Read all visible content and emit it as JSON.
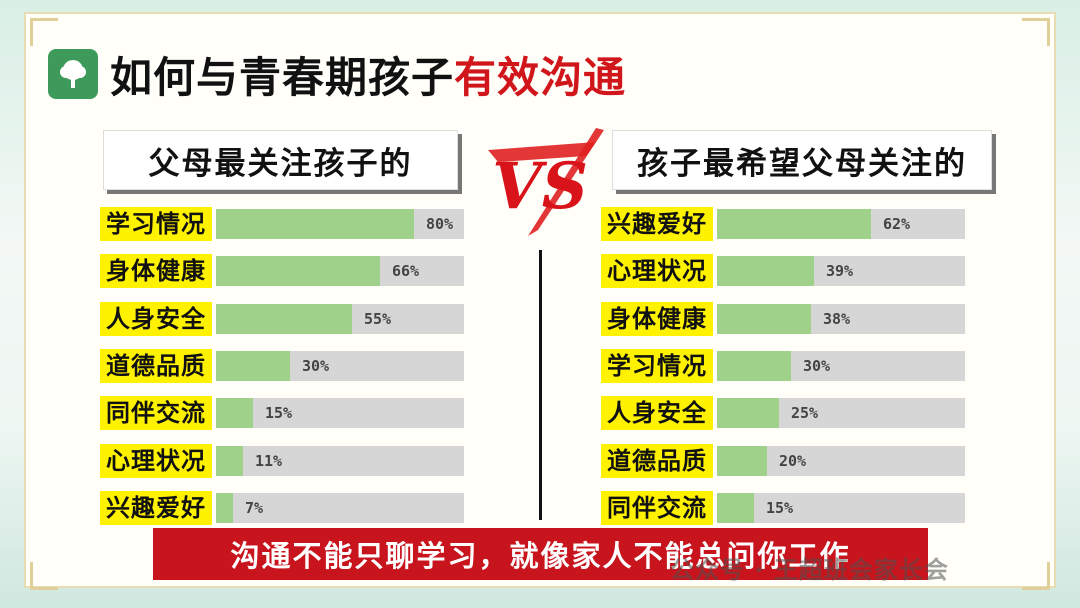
{
  "title": {
    "main": "如何与青春期孩子",
    "accent": "有效沟通"
  },
  "left_heading": "父母最关注孩子的",
  "right_heading": "孩子最希望父母关注的",
  "vs_label": "VS",
  "banner": "沟通不能只聊学习，就像家人不能总问你工作",
  "watermark": "公众号 · 王超班会家长会",
  "colors": {
    "accent": "#d0161a",
    "bar_fill": "#9fd18a",
    "bar_track": "#d6d6d6",
    "label_bg": "#fff200",
    "banner_bg": "#c8141c"
  },
  "chart_data": [
    {
      "type": "bar",
      "orientation": "horizontal",
      "title": "父母最关注孩子的",
      "categories": [
        "学习情况",
        "身体健康",
        "人身安全",
        "道德品质",
        "同伴交流",
        "心理状况",
        "兴趣爱好"
      ],
      "values": [
        80,
        66,
        55,
        30,
        15,
        11,
        7
      ],
      "labels": [
        "80%",
        "66%",
        "55%",
        "30%",
        "15%",
        "11%",
        "7%"
      ],
      "unit": "%",
      "xlim": [
        0,
        100
      ]
    },
    {
      "type": "bar",
      "orientation": "horizontal",
      "title": "孩子最希望父母关注的",
      "categories": [
        "兴趣爱好",
        "心理状况",
        "身体健康",
        "学习情况",
        "人身安全",
        "道德品质",
        "同伴交流"
      ],
      "values": [
        62,
        39,
        38,
        30,
        25,
        20,
        15
      ],
      "labels": [
        "62%",
        "39%",
        "38%",
        "30%",
        "25%",
        "20%",
        "15%"
      ],
      "unit": "%",
      "xlim": [
        0,
        100
      ]
    }
  ]
}
